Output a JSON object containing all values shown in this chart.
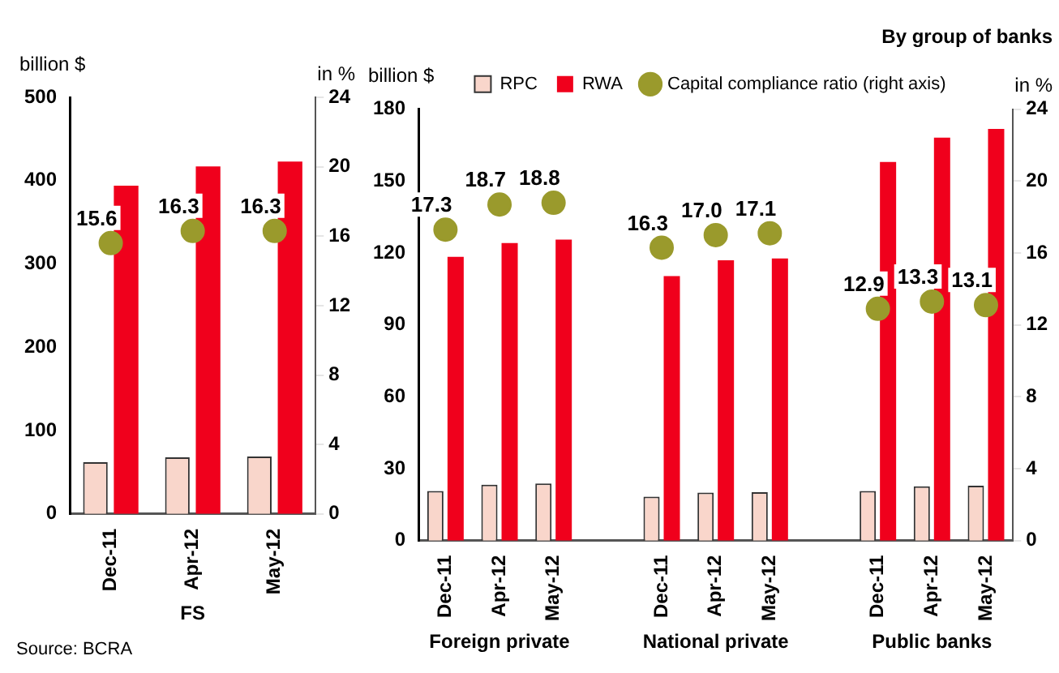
{
  "chart_data": [
    {
      "type": "bar",
      "categories": [
        "Dec-11",
        "Apr-12",
        "May-12"
      ],
      "xlabel": "FS",
      "ylabel": "billion $",
      "y2label": "in %",
      "ylim": [
        0,
        500
      ],
      "yticks": [
        0,
        100,
        200,
        300,
        400,
        500
      ],
      "y2lim": [
        0,
        24
      ],
      "y2ticks": [
        0,
        4,
        8,
        12,
        16,
        20,
        24
      ],
      "legend": false,
      "series": [
        {
          "color": "#f9d6cb",
          "values": [
            62,
            68,
            69
          ]
        },
        {
          "color": "#f0001c",
          "values": [
            394,
            417,
            423
          ]
        },
        {
          "type": "scatter",
          "axis": "y2",
          "marker": "circle",
          "color": "#9a9a2c",
          "values": [
            15.6,
            16.3,
            16.3
          ],
          "value_labels": [
            "15.6",
            "16.3",
            "16.3"
          ]
        }
      ],
      "annotations": [
        "Source: BCRA"
      ]
    },
    {
      "type": "bar",
      "title": "By group of banks",
      "categories": [
        "Dec-11",
        "Apr-12",
        "May-12",
        null,
        "Dec-11",
        "Apr-12",
        "May-12",
        null,
        "Dec-11",
        "Apr-12",
        "May-12"
      ],
      "ylabel": "billion $",
      "y2label": "in %",
      "ylim": [
        0,
        180
      ],
      "yticks": [
        0,
        30,
        60,
        90,
        120,
        150,
        180
      ],
      "y2lim": [
        0,
        24
      ],
      "y2ticks": [
        0,
        4,
        8,
        12,
        16,
        20,
        24
      ],
      "legend": "top",
      "series": [
        {
          "name": "RPC",
          "color": "#f9d6cb",
          "values": [
            20.7,
            23.3,
            23.8,
            null,
            18.3,
            20.0,
            20.2,
            null,
            20.7,
            22.6,
            22.9
          ]
        },
        {
          "name": "RWA",
          "color": "#f0001c",
          "values": [
            118.4,
            124.2,
            125.6,
            null,
            110.4,
            117.0,
            117.7,
            null,
            158,
            168.2,
            171.8
          ]
        },
        {
          "name": "Capital compliance ratio (right axis)",
          "type": "scatter",
          "axis": "y2",
          "marker": "circle",
          "color": "#9a9a2c",
          "values": [
            17.3,
            18.7,
            18.8,
            null,
            16.3,
            17.0,
            17.1,
            null,
            12.9,
            13.3,
            13.1
          ],
          "value_labels": [
            "17.3",
            "18.7",
            "18.8",
            null,
            "16.3",
            "17.0",
            "17.1",
            null,
            "12.9",
            "13.3",
            "13.1"
          ]
        }
      ],
      "annotations": [
        "Foreign private",
        "National private",
        "Public banks"
      ]
    }
  ]
}
